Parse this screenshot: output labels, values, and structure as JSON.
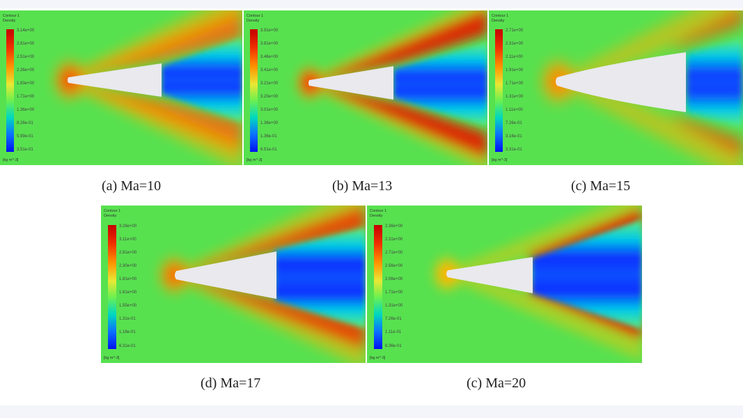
{
  "panels": [
    {
      "id": "a",
      "caption": "(a) Ma=10",
      "legend_title": [
        "Contour 1",
        "Density"
      ],
      "legend_ticks": [
        "3.14e+00",
        "2.81e+00",
        "2.51e+00",
        "2.36e+00",
        "1.93e+00",
        "1.71e+00",
        "1.36e+00",
        "8.26e-01",
        "5.99e-01",
        "3.51e-01"
      ],
      "legend_unit": "[kg m^-3]"
    },
    {
      "id": "b",
      "caption": "(b) Ma=13",
      "legend_title": [
        "Contour 1",
        "Density"
      ],
      "legend_ticks": [
        "3.91e+00",
        "3.81e+00",
        "3.46e+00",
        "3.41e+00",
        "3.21e+00",
        "3.20e+00",
        "3.01e+00",
        "1.36e+00",
        "1.36e-01",
        "6.51e-01"
      ],
      "legend_unit": "[kg m^-3]"
    },
    {
      "id": "c",
      "caption": "(c) Ma=15",
      "legend_title": [
        "Contour 1",
        "Density"
      ],
      "legend_ticks": [
        "2.71e+00",
        "2.31e+00",
        "2.11e+00",
        "1.91e+00",
        "1.71e+00",
        "1.31e+00",
        "1.11e+00",
        "7.26e-01",
        "3.16e-01",
        "3.31e-01"
      ],
      "legend_unit": "[kg m^-3]"
    },
    {
      "id": "d",
      "caption": "(d) Ma=17",
      "legend_title": [
        "Contour 1",
        "Density"
      ],
      "legend_ticks": [
        "3.26e+00",
        "3.11e+00",
        "2.81e+00",
        "2.30e+00",
        "1.81e+00",
        "1.61e+00",
        "1.55e+00",
        "1.31e-01",
        "1.16e-01",
        "6.31e-01"
      ],
      "legend_unit": "[kg m^-3]"
    },
    {
      "id": "e",
      "caption": "(c) Ma=20",
      "legend_title": [
        "Contour 1",
        "Density"
      ],
      "legend_ticks": [
        "2.36e+00",
        "2.31e+00",
        "2.71e+00",
        "2.56e+00",
        "2.06e+00",
        "1.71e+00",
        "1.31e+00",
        "7.26e-01",
        "1.11e-01",
        "6.36e-01"
      ],
      "legend_unit": "[kg m^-3]"
    }
  ],
  "colormap": [
    "#0000ff",
    "#0b5dfb",
    "#00c6e8",
    "#2ee98f",
    "#7ff246",
    "#e8e834",
    "#ffb000",
    "#f56000",
    "#d90000"
  ],
  "colors": {
    "background": "#f3f5fa",
    "freestream": "#57e14f",
    "cone": "#e9e9ee"
  }
}
